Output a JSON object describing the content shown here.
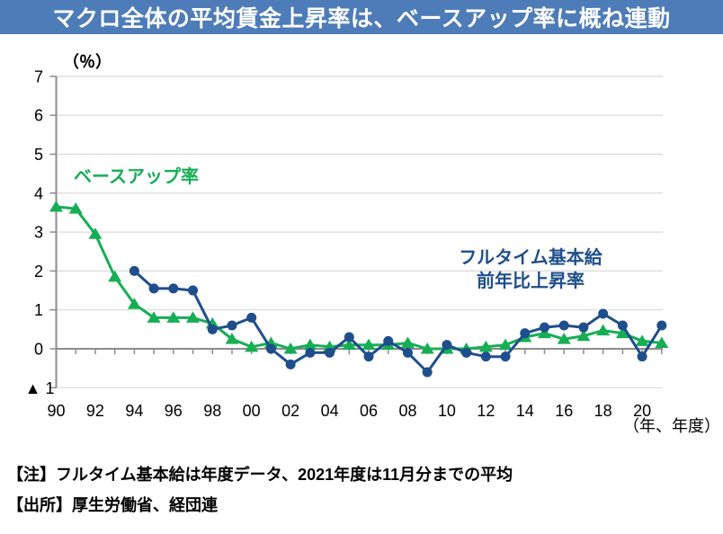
{
  "header": {
    "title": "マクロ全体の平均賃金上昇率は、ベースアップ率に概ね連動"
  },
  "chart_data": {
    "type": "line",
    "title": "マクロ全体の平均賃金上昇率は、ベースアップ率に概ね連動",
    "unit_label": "（％）",
    "axis_suffix_label": "（年、年度）",
    "grid": true,
    "ylim": [
      -1,
      7
    ],
    "y_tick_values": [
      7,
      6,
      5,
      4,
      3,
      2,
      1,
      0,
      -1
    ],
    "y_tick_negative_label": "▲ 1",
    "x": [
      1990,
      1991,
      1992,
      1993,
      1994,
      1995,
      1996,
      1997,
      1998,
      1999,
      2000,
      2001,
      2002,
      2003,
      2004,
      2005,
      2006,
      2007,
      2008,
      2009,
      2010,
      2011,
      2012,
      2013,
      2014,
      2015,
      2016,
      2017,
      2018,
      2019,
      2020,
      2021
    ],
    "x_tick_labels": [
      "90",
      "92",
      "94",
      "96",
      "98",
      "00",
      "02",
      "04",
      "06",
      "08",
      "10",
      "12",
      "14",
      "16",
      "18",
      "20"
    ],
    "series": [
      {
        "name": "ベースアップ率",
        "marker": "triangle",
        "color": "#16AE54",
        "values": [
          3.65,
          3.6,
          2.95,
          1.85,
          1.15,
          0.8,
          0.8,
          0.8,
          0.65,
          0.25,
          0.05,
          0.15,
          0.0,
          0.1,
          0.05,
          0.1,
          0.1,
          0.1,
          0.15,
          0.0,
          0.0,
          0.0,
          0.05,
          0.1,
          0.3,
          0.4,
          0.25,
          0.33,
          0.47,
          0.4,
          0.2,
          0.15
        ]
      },
      {
        "name": "フルタイム基本給 前年比上昇率",
        "marker": "circle",
        "color": "#1F4E8C",
        "values": [
          null,
          null,
          null,
          null,
          2.0,
          1.55,
          1.55,
          1.5,
          0.5,
          0.6,
          0.8,
          0.0,
          -0.4,
          -0.1,
          -0.1,
          0.3,
          -0.2,
          0.2,
          -0.1,
          -0.6,
          0.1,
          -0.1,
          -0.2,
          -0.2,
          0.4,
          0.55,
          0.6,
          0.55,
          0.9,
          0.6,
          -0.2,
          0.6
        ]
      }
    ],
    "legend_position": "inline-labels"
  },
  "labels": {
    "baseup_label": "ベースアップ率",
    "fulltime_label_line1": "フルタイム基本給",
    "fulltime_label_line2": "前年比上昇率"
  },
  "notes": {
    "note": "【注】フルタイム基本給は年度データ、2021年度は11月分までの平均",
    "source": "【出所】厚生労働省、経団連"
  },
  "colors": {
    "banner_bg": "#4E7CB8",
    "banner_text": "#FFFFFF",
    "baseup_series": "#16AE54",
    "fulltime_series": "#1F4E8C",
    "gridline": "#D9D9D9",
    "axis": "#8C8C8C",
    "tick_text": "#000000"
  }
}
